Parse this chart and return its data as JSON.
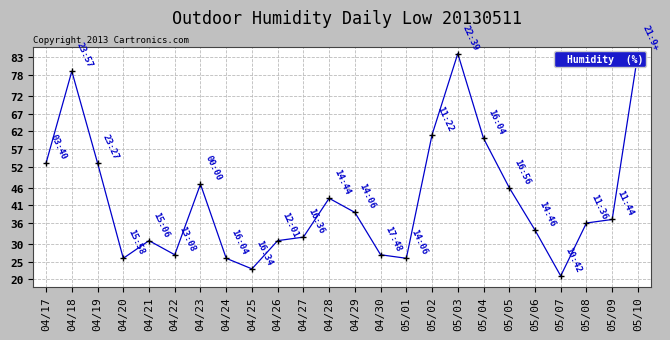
{
  "title": "Outdoor Humidity Daily Low 20130511",
  "copyright": "Copyright 2013 Cartronics.com",
  "legend_label": "Humidity  (%)",
  "background_color": "#c0c0c0",
  "plot_bg_color": "#ffffff",
  "line_color": "#0000cc",
  "marker_color": "#000000",
  "text_color": "#0000cc",
  "grid_color": "#bbbbbb",
  "ylim": [
    18,
    86
  ],
  "yticks": [
    20,
    25,
    30,
    36,
    41,
    46,
    52,
    57,
    62,
    67,
    72,
    78,
    83
  ],
  "x_labels": [
    "04/17",
    "04/18",
    "04/19",
    "04/20",
    "04/21",
    "04/22",
    "04/23",
    "04/24",
    "04/25",
    "04/26",
    "04/27",
    "04/28",
    "04/29",
    "04/30",
    "05/01",
    "05/02",
    "05/03",
    "05/04",
    "05/05",
    "05/06",
    "05/07",
    "05/08",
    "05/09",
    "05/10"
  ],
  "values": [
    53,
    79,
    53,
    26,
    31,
    27,
    47,
    26,
    23,
    31,
    32,
    43,
    39,
    27,
    26,
    61,
    84,
    60,
    46,
    34,
    21,
    36,
    37,
    84
  ],
  "time_labels": [
    "03:40",
    "23:57",
    "23:27",
    "15:58",
    "15:06",
    "13:08",
    "00:00",
    "16:04",
    "16:34",
    "12:01",
    "16:36",
    "14:44",
    "14:06",
    "17:48",
    "14:06",
    "11:22",
    "22:39",
    "16:04",
    "16:56",
    "14:46",
    "10:42",
    "11:36",
    "11:44",
    "21:9+"
  ],
  "title_fontsize": 12,
  "tick_fontsize": 8,
  "annot_fontsize": 6.5
}
